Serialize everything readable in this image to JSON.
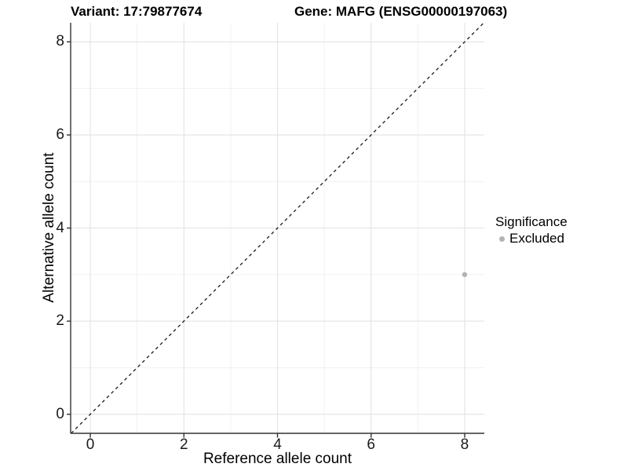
{
  "chart_data": {
    "type": "scatter",
    "titles": {
      "variant": "Variant: 17:79877674",
      "gene": "Gene: MAFG (ENSG00000197063)"
    },
    "xlabel": "Reference allele count",
    "ylabel": "Alternative allele count",
    "xlim": [
      -0.42,
      8.42
    ],
    "ylim": [
      -0.41,
      8.41
    ],
    "x_major_ticks": [
      0,
      2,
      4,
      6,
      8
    ],
    "x_minor_ticks": [
      1,
      3,
      5,
      7
    ],
    "y_major_ticks": [
      0,
      2,
      4,
      6,
      8
    ],
    "y_minor_ticks": [
      1,
      3,
      5,
      7
    ],
    "grid": true,
    "points": [
      {
        "x": 8,
        "y": 3,
        "series": "Excluded"
      }
    ],
    "identity_line": {
      "style": "dashed",
      "slope": 1,
      "intercept": 0
    },
    "legend": {
      "position": "right",
      "title": "Significance",
      "items": [
        {
          "label": "Excluded",
          "color": "#b3b3b3"
        }
      ]
    },
    "colors": {
      "point": "#b3b3b3",
      "grid_major": "#e3e3e3",
      "grid_minor": "#f0f0f0",
      "axis": "#333333",
      "dashed_line": "#1a1a1a",
      "background": "#ffffff"
    }
  }
}
